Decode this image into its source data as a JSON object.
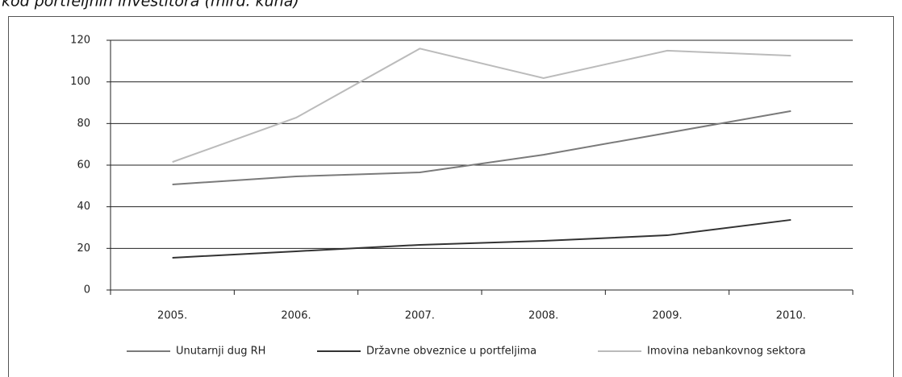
{
  "chart_data": {
    "type": "line",
    "title": "kod portfeljnih investitora (mlrd. kuna)",
    "categories": [
      "2005.",
      "2006.",
      "2007.",
      "2008.",
      "2009.",
      "2010."
    ],
    "series": [
      {
        "name": "Unutarnji dug RH",
        "color": "#7a7a7a",
        "values": [
          50.7,
          54.6,
          56.5,
          65,
          75.5,
          86
        ]
      },
      {
        "name": "Državne obveznice u portfeljima",
        "color": "#333333",
        "values": [
          15.5,
          18.6,
          21.7,
          23.6,
          26.3,
          33.7
        ]
      },
      {
        "name": "Imovina nebankovnog sektora",
        "color": "#bbbbbb",
        "values": [
          61.5,
          82.8,
          116,
          101.8,
          115,
          112.6
        ]
      }
    ],
    "ylim": [
      0,
      120
    ],
    "yticks": [
      0,
      20,
      40,
      60,
      80,
      100,
      120
    ],
    "grid": true,
    "legend": "bottom"
  }
}
